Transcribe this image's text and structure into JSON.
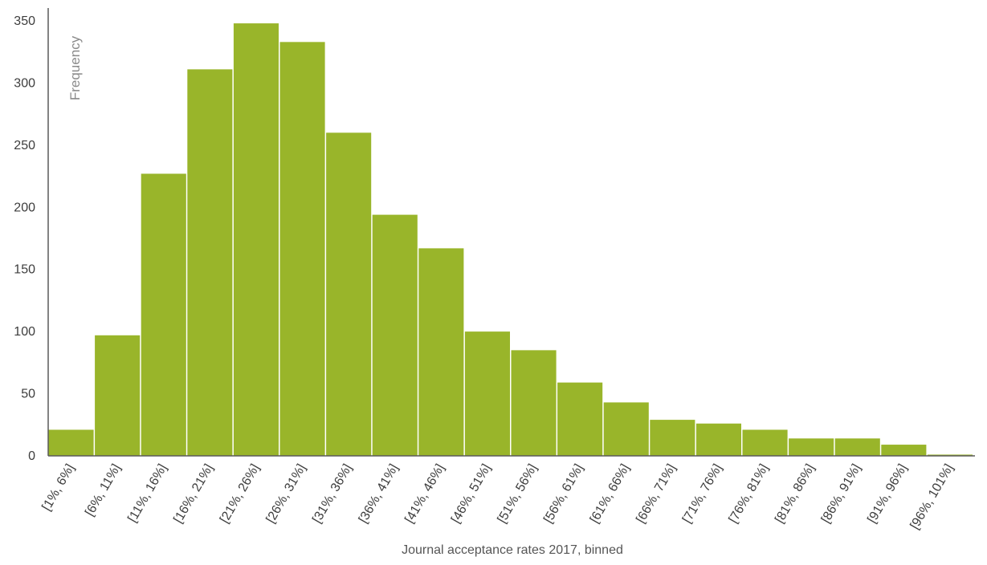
{
  "chart_data": {
    "type": "bar",
    "title": "",
    "xlabel": "Journal acceptance rates 2017, binned",
    "ylabel": "Frequency",
    "ylim": [
      0,
      350
    ],
    "yticks": [
      0,
      50,
      100,
      150,
      200,
      250,
      300,
      350
    ],
    "grid": false,
    "legend": "none",
    "bar_color": "#99b52a",
    "axis_color": "#5a5a5a",
    "categories": [
      "[1%, 6%]",
      "[6%, 11%]",
      "[11%, 16%]",
      "[16%, 21%]",
      "[21%, 26%]",
      "[26%, 31%]",
      "[31%, 36%]",
      "[36%, 41%]",
      "[41%, 46%]",
      "[46%, 51%]",
      "[51%, 56%]",
      "[56%, 61%]",
      "[61%, 66%]",
      "[66%, 71%]",
      "[71%, 76%]",
      "[76%, 81%]",
      "[81%, 86%]",
      "[86%, 91%]",
      "[91%, 96%]",
      "[96%, 101%]"
    ],
    "values": [
      21,
      97,
      227,
      311,
      348,
      333,
      260,
      194,
      167,
      100,
      85,
      59,
      43,
      29,
      26,
      21,
      14,
      14,
      9,
      1
    ]
  }
}
